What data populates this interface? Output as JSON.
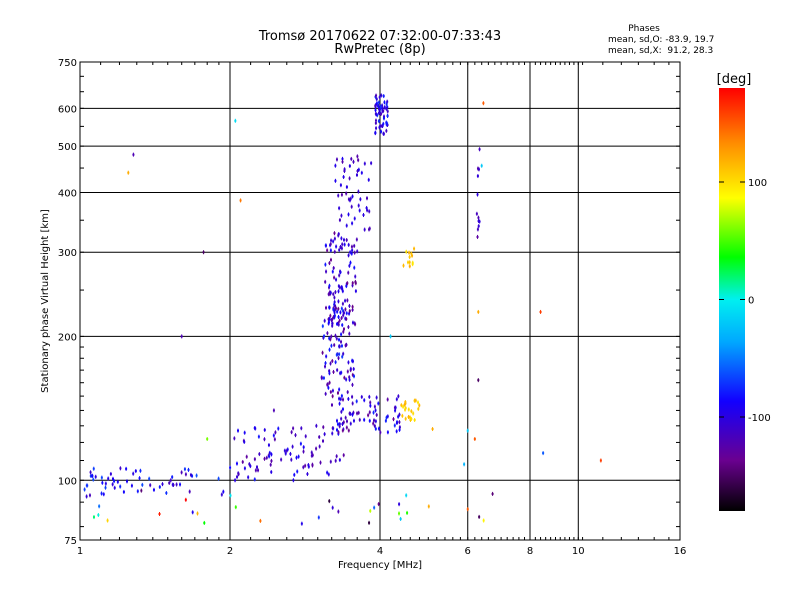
{
  "chart_data": {
    "type": "scatter",
    "title": "Tromsø 20170622 07:32:00-07:33:43",
    "subtitle": "RwPretec (8p)",
    "xlabel": "Frequency [MHz]",
    "ylabel": "Stationary phase Virtual Height [km]",
    "xscale": "log",
    "yscale": "log",
    "xlim": [
      1,
      16
    ],
    "ylim": [
      75,
      750
    ],
    "x_ticks": [
      1,
      2,
      4,
      6,
      8,
      10,
      16
    ],
    "x_tick_labels": [
      "1",
      "2",
      "4",
      "6",
      "8",
      "10",
      "16"
    ],
    "y_ticks": [
      75,
      100,
      200,
      300,
      400,
      500,
      600,
      750
    ],
    "y_tick_labels": [
      "75",
      "100",
      "200",
      "300",
      "400",
      "500",
      "600",
      "750"
    ],
    "grid": true,
    "phases_box": {
      "title": "Phases",
      "line_o": "mean, sd,O: -83.9, 19.7",
      "line_x": "mean, sd,X:  91.2, 28.3"
    },
    "colorbar": {
      "label": "[deg]",
      "range": [
        -180,
        180
      ],
      "ticks": [
        100,
        0,
        -100
      ],
      "tick_labels": [
        "100",
        "0",
        "-100"
      ]
    },
    "clusters": [
      {
        "name": "low-freq-E",
        "n": 60,
        "x": [
          1.0,
          1.95
        ],
        "y": [
          93,
          106
        ],
        "phase": [
          -120,
          -60
        ],
        "seed": 11
      },
      {
        "name": "base-trace",
        "n": 90,
        "x": [
          2.0,
          3.4
        ],
        "y": [
          100,
          130
        ],
        "phase": [
          -130,
          -80
        ],
        "seed": 21
      },
      {
        "name": "f1-cusp",
        "n": 80,
        "x": [
          3.2,
          4.4
        ],
        "y": [
          125,
          150
        ],
        "phase": [
          -140,
          -75
        ],
        "seed": 31
      },
      {
        "name": "f2-low-stack",
        "n": 90,
        "x": [
          3.05,
          3.55
        ],
        "y": [
          150,
          230
        ],
        "phase": [
          -140,
          -70
        ],
        "seed": 41
      },
      {
        "name": "f2-mid-stack",
        "n": 110,
        "x": [
          3.1,
          3.6
        ],
        "y": [
          210,
          330
        ],
        "phase": [
          -140,
          -80
        ],
        "seed": 51
      },
      {
        "name": "f2-upper-stack",
        "n": 50,
        "x": [
          3.25,
          3.85
        ],
        "y": [
          330,
          480
        ],
        "phase": [
          -130,
          -90
        ],
        "seed": 61
      },
      {
        "name": "f2-top",
        "n": 60,
        "x": [
          3.9,
          4.15
        ],
        "y": [
          530,
          640
        ],
        "phase": [
          -120,
          -70
        ],
        "seed": 71
      },
      {
        "name": "x-mode-low",
        "n": 22,
        "x": [
          4.4,
          4.8
        ],
        "y": [
          133,
          147
        ],
        "phase": [
          95,
          125
        ],
        "seed": 81
      },
      {
        "name": "x-mode-high",
        "n": 12,
        "x": [
          4.45,
          4.7
        ],
        "y": [
          280,
          320
        ],
        "phase": [
          95,
          125
        ],
        "seed": 91
      },
      {
        "name": "6mhz-trace",
        "n": 12,
        "x": [
          6.25,
          6.35
        ],
        "y": [
          320,
          520
        ],
        "phase": [
          -130,
          -100
        ],
        "seed": 101
      },
      {
        "name": "noise-low",
        "n": 30,
        "x": [
          1.0,
          7.0
        ],
        "y": [
          80,
          96
        ],
        "phase": [
          -180,
          180
        ],
        "seed": 111
      }
    ],
    "outliers": [
      {
        "x": 1.28,
        "y": 480,
        "phase": -120
      },
      {
        "x": 1.25,
        "y": 440,
        "phase": 120
      },
      {
        "x": 2.05,
        "y": 565,
        "phase": -10
      },
      {
        "x": 2.1,
        "y": 385,
        "phase": 140
      },
      {
        "x": 1.77,
        "y": 300,
        "phase": -150
      },
      {
        "x": 1.6,
        "y": 200,
        "phase": -120
      },
      {
        "x": 1.8,
        "y": 122,
        "phase": 60
      },
      {
        "x": 2.45,
        "y": 140,
        "phase": -120
      },
      {
        "x": 4.2,
        "y": 200,
        "phase": -20
      },
      {
        "x": 5.1,
        "y": 128,
        "phase": 120
      },
      {
        "x": 5.9,
        "y": 108,
        "phase": -30
      },
      {
        "x": 6.0,
        "y": 127,
        "phase": -20
      },
      {
        "x": 6.3,
        "y": 225,
        "phase": 120
      },
      {
        "x": 6.4,
        "y": 455,
        "phase": -20
      },
      {
        "x": 6.45,
        "y": 615,
        "phase": 150
      },
      {
        "x": 6.3,
        "y": 162,
        "phase": -150
      },
      {
        "x": 6.2,
        "y": 122,
        "phase": 150
      },
      {
        "x": 8.4,
        "y": 225,
        "phase": 160
      },
      {
        "x": 8.5,
        "y": 114,
        "phase": -60
      },
      {
        "x": 11.1,
        "y": 110,
        "phase": 160
      },
      {
        "x": 3.3,
        "y": 86,
        "phase": -120
      },
      {
        "x": 4.4,
        "y": 83,
        "phase": -20
      },
      {
        "x": 6.0,
        "y": 87,
        "phase": 150
      }
    ]
  }
}
